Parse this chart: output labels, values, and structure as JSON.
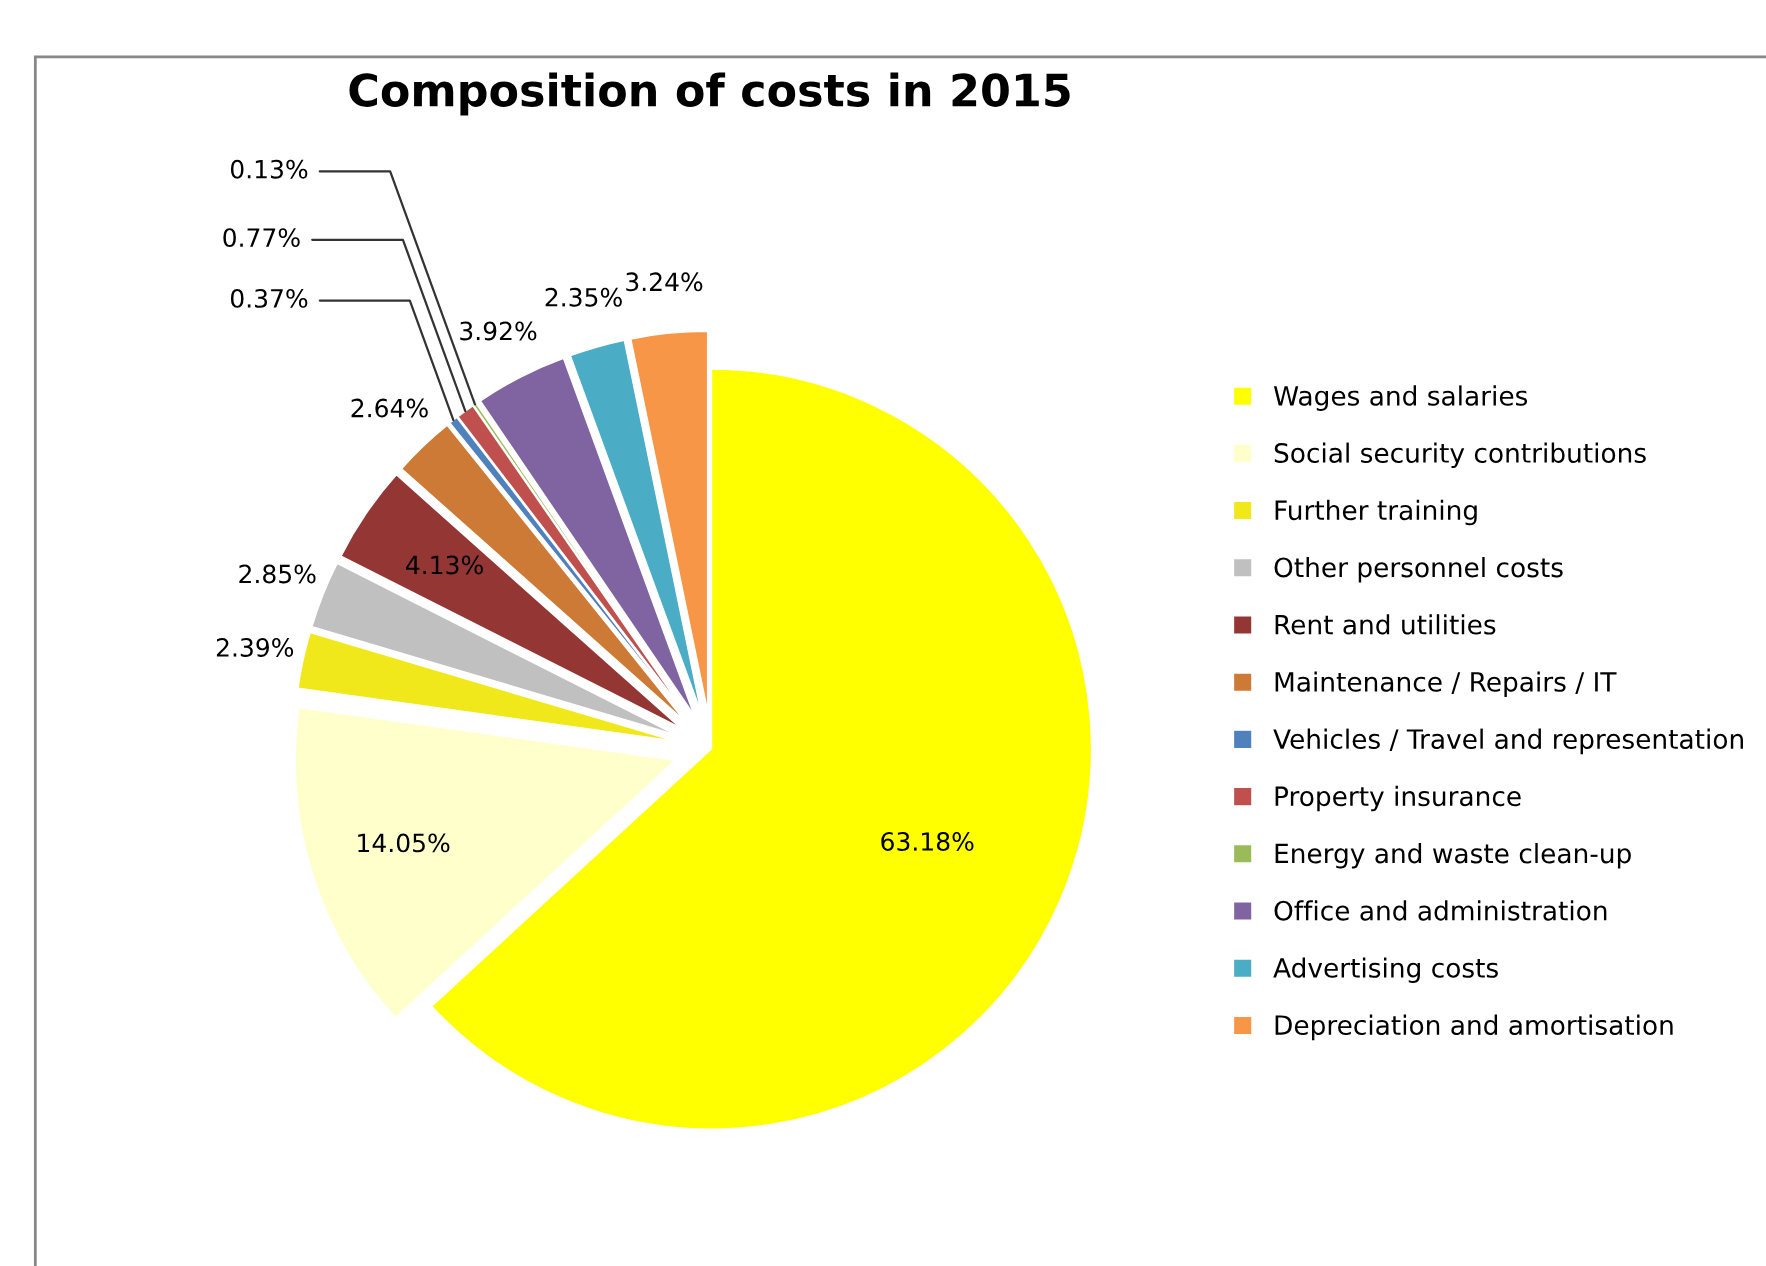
{
  "chart_data": {
    "type": "pie",
    "title": "Composition of costs in 2015",
    "categories": [
      "Wages and salaries",
      "Social security contributions",
      "Further training",
      "Other personnel costs",
      "Rent and utilities",
      "Maintenance / Repairs / IT",
      "Vehicles / Travel and representation",
      "Property insurance",
      "Energy and waste clean-up",
      "Office and administration",
      "Advertising costs",
      "Depreciation and amortisation"
    ],
    "values": [
      63.18,
      14.05,
      2.39,
      2.85,
      4.13,
      2.64,
      0.37,
      0.77,
      0.13,
      3.92,
      2.35,
      3.24
    ],
    "value_labels": [
      "63.18%",
      "14.05%",
      "2.39%",
      "2.85%",
      "4.13%",
      "2.64%",
      "0.37%",
      "0.77%",
      "0.13%",
      "3.92%",
      "2.35%",
      "3.24%"
    ],
    "colors": [
      "#ffff00",
      "#ffffcc",
      "#f0e81a",
      "#c0c0c0",
      "#943634",
      "#cc7a36",
      "#4f81bd",
      "#c0504d",
      "#9bbb59",
      "#8064a2",
      "#4bacc6",
      "#f79646"
    ],
    "legend": "right"
  }
}
